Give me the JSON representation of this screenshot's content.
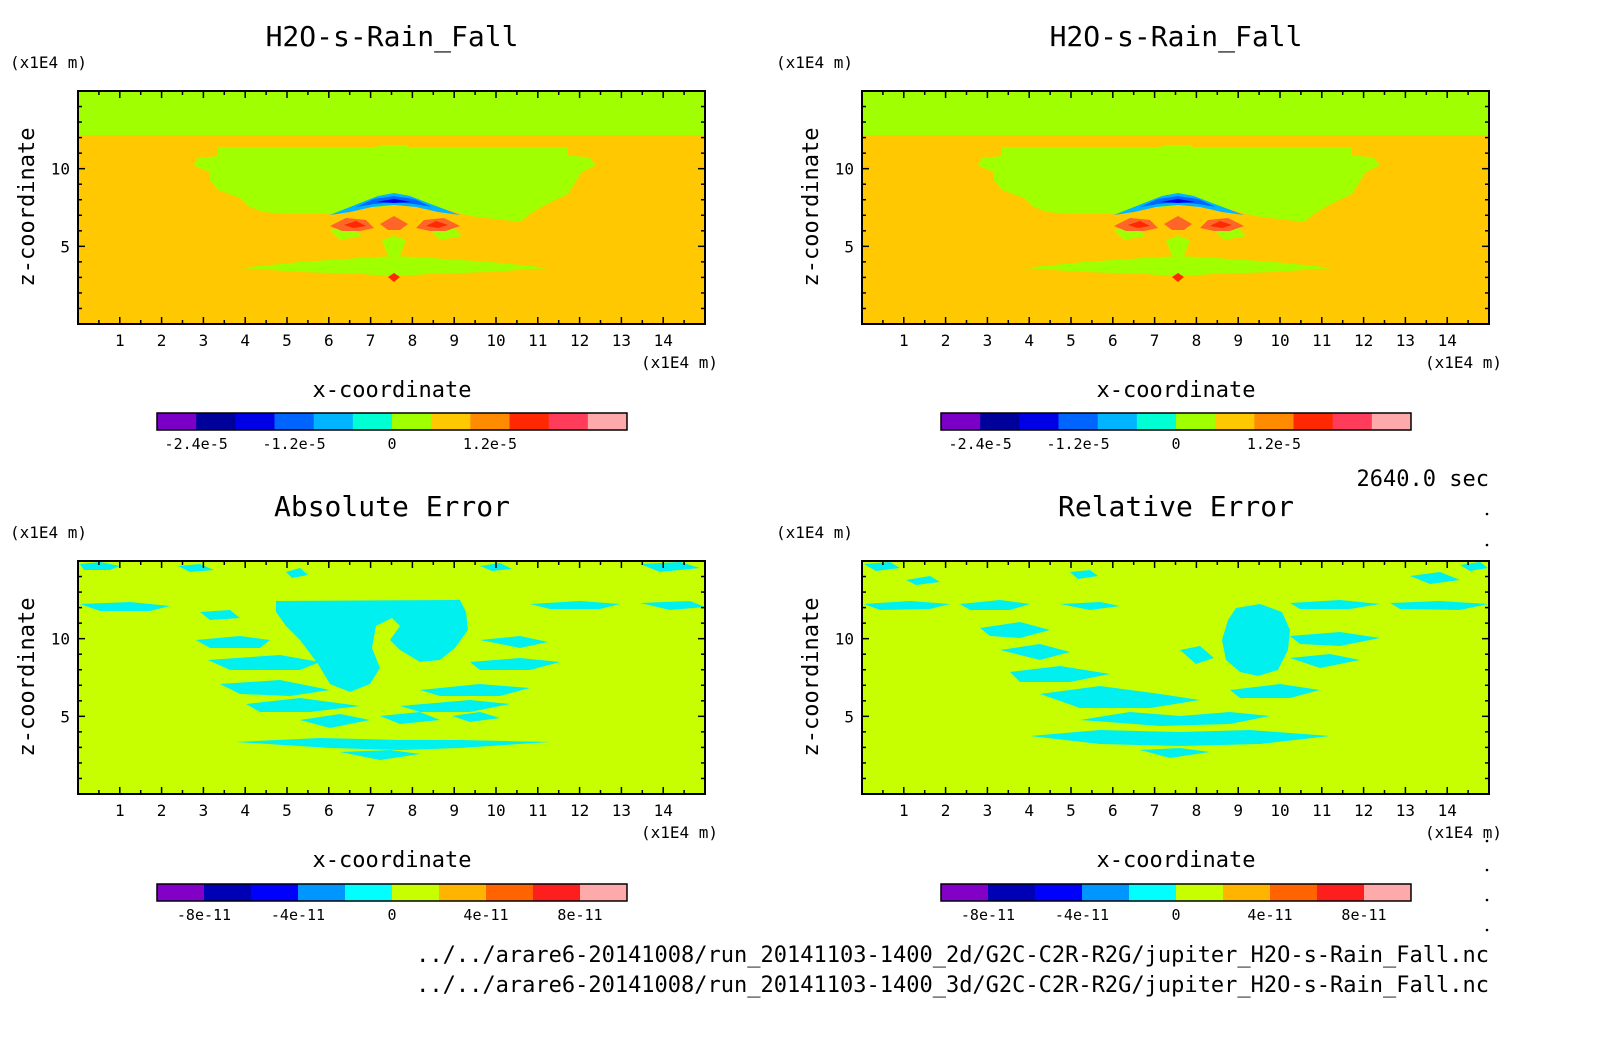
{
  "figure": {
    "time_label": "2640.0 sec",
    "file_lines": [
      "../../arare6-20141008/run_20141103-1400_2d/G2C-C2R-R2G/jupiter_H2O-s-Rain_Fall.nc",
      "../../arare6-20141008/run_20141103-1400_3d/G2C-C2R-R2G/jupiter_H2O-s-Rain_Fall.nc"
    ],
    "colors": {
      "field_background": "#ffc800",
      "field_top_band": "#a0ff00",
      "error_background": "#c8ff00",
      "error_patches": "#00f0f0"
    }
  },
  "chart_data": [
    {
      "type": "heatmap",
      "title": "H2O-s-Rain_Fall",
      "xlabel": "x-coordinate",
      "ylabel": "z-coordinate",
      "x_unit": "(x1E4 m)",
      "y_unit": "(x1E4 m)",
      "xlim": [
        0,
        15
      ],
      "ylim": [
        0,
        15
      ],
      "x_ticks": [
        "1",
        "2",
        "3",
        "4",
        "5",
        "6",
        "7",
        "8",
        "9",
        "10",
        "11",
        "12",
        "13",
        "14"
      ],
      "y_ticks": [
        "5",
        "10"
      ],
      "colorbar": {
        "ticks": [
          "-2.4e-5",
          "-1.2e-5",
          "0",
          "1.2e-5"
        ],
        "colors": [
          "#7a00c8",
          "#00009b",
          "#0000e6",
          "#0064ff",
          "#00b4ff",
          "#00ffd2",
          "#a0ff00",
          "#ffc800",
          "#ff8c00",
          "#ff2800",
          "#ff3c5a",
          "#ffaaaa"
        ]
      },
      "features": {
        "background_value": "slightly above 0",
        "top_band_above_z": 12,
        "negative_arc_center": [
          7.6,
          7.8
        ],
        "positive_lobes_at_z": 6.3
      }
    },
    {
      "type": "heatmap",
      "title": "H2O-s-Rain_Fall",
      "xlabel": "x-coordinate",
      "ylabel": "z-coordinate",
      "x_unit": "(x1E4 m)",
      "y_unit": "(x1E4 m)",
      "xlim": [
        0,
        15
      ],
      "ylim": [
        0,
        15
      ],
      "x_ticks": [
        "1",
        "2",
        "3",
        "4",
        "5",
        "6",
        "7",
        "8",
        "9",
        "10",
        "11",
        "12",
        "13",
        "14"
      ],
      "y_ticks": [
        "5",
        "10"
      ],
      "colorbar": {
        "ticks": [
          "-2.4e-5",
          "-1.2e-5",
          "0",
          "1.2e-5"
        ],
        "colors": [
          "#7a00c8",
          "#00009b",
          "#0000e6",
          "#0064ff",
          "#00b4ff",
          "#00ffd2",
          "#a0ff00",
          "#ffc800",
          "#ff8c00",
          "#ff2800",
          "#ff3c5a",
          "#ffaaaa"
        ]
      }
    },
    {
      "type": "heatmap",
      "title": "Absolute Error",
      "xlabel": "x-coordinate",
      "ylabel": "z-coordinate",
      "x_unit": "(x1E4 m)",
      "y_unit": "(x1E4 m)",
      "xlim": [
        0,
        15
      ],
      "ylim": [
        0,
        15
      ],
      "x_ticks": [
        "1",
        "2",
        "3",
        "4",
        "5",
        "6",
        "7",
        "8",
        "9",
        "10",
        "11",
        "12",
        "13",
        "14"
      ],
      "y_ticks": [
        "5",
        "10"
      ],
      "colorbar": {
        "ticks": [
          "-8e-11",
          "-4e-11",
          "0",
          "4e-11",
          "8e-11"
        ],
        "colors": [
          "#8200c8",
          "#0000b4",
          "#0000ff",
          "#0096ff",
          "#00ffff",
          "#c8ff00",
          "#ffb400",
          "#ff6400",
          "#ff1e1e",
          "#ffaaaa"
        ]
      }
    },
    {
      "type": "heatmap",
      "title": "Relative Error",
      "xlabel": "x-coordinate",
      "ylabel": "z-coordinate",
      "x_unit": "(x1E4 m)",
      "y_unit": "(x1E4 m)",
      "xlim": [
        0,
        15
      ],
      "ylim": [
        0,
        15
      ],
      "x_ticks": [
        "1",
        "2",
        "3",
        "4",
        "5",
        "6",
        "7",
        "8",
        "9",
        "10",
        "11",
        "12",
        "13",
        "14"
      ],
      "y_ticks": [
        "5",
        "10"
      ],
      "colorbar": {
        "ticks": [
          "-8e-11",
          "-4e-11",
          "0",
          "4e-11",
          "8e-11"
        ],
        "colors": [
          "#8200c8",
          "#0000b4",
          "#0000ff",
          "#0096ff",
          "#00ffff",
          "#c8ff00",
          "#ffb400",
          "#ff6400",
          "#ff1e1e",
          "#ffaaaa"
        ]
      }
    }
  ]
}
